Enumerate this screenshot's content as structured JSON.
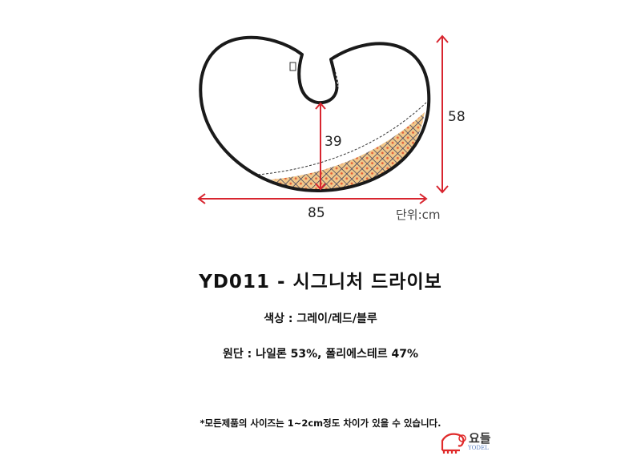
{
  "diagram": {
    "dimensions": {
      "width": "85",
      "height": "58",
      "neck_to_bottom": "39"
    },
    "unit_label": "단위:cm",
    "colors": {
      "outline": "#1a1a1a",
      "arrow": "#d8252f",
      "pattern_bg": "#f2c88a",
      "pattern_line": "#3d3f5c",
      "pattern_dot": "#e0603a"
    }
  },
  "product": {
    "title": "YD011 - 시그니처 드라이보",
    "color_line": "색상 : 그레이/레드/블루",
    "material_line": "원단 : 나일론 53%, 폴리에스테르 47%"
  },
  "note": "*모든제품의 사이즈는 1~2cm정도 차이가 있을 수 있습니다.",
  "brand": {
    "name_ko": "요들",
    "name_en": "YODEL",
    "color": "#e02a2a"
  }
}
